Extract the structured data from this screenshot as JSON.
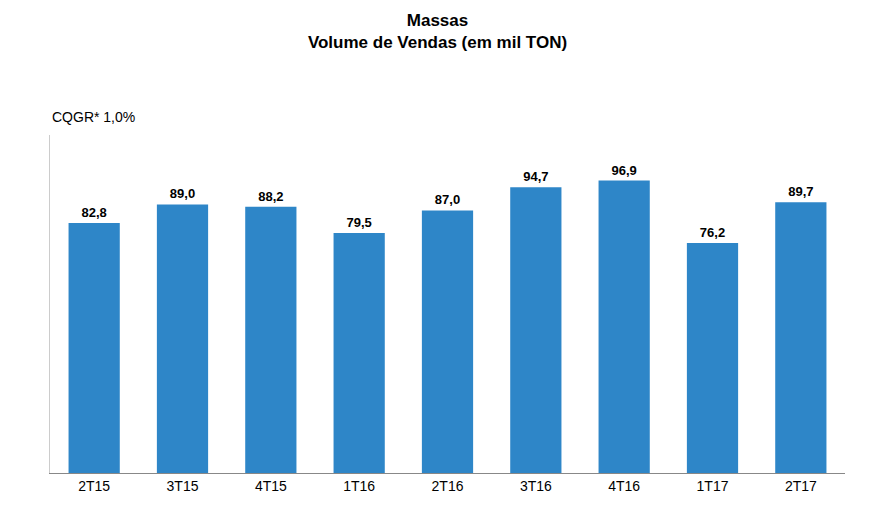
{
  "chart_data": {
    "type": "bar",
    "title": "Massas",
    "subtitle": "Volume de Vendas (em mil TON)",
    "annotations": [
      "CQGR* 1,0%"
    ],
    "categories": [
      "2T15",
      "3T15",
      "4T15",
      "1T16",
      "2T16",
      "3T16",
      "4T16",
      "1T17",
      "2T17"
    ],
    "values": [
      82.8,
      89.0,
      88.2,
      79.5,
      87.0,
      94.7,
      96.9,
      76.2,
      89.7
    ],
    "value_labels": [
      "82,8",
      "89,0",
      "88,2",
      "79,5",
      "87,0",
      "94,7",
      "96,9",
      "76,2",
      "89,7"
    ],
    "data_labels": true,
    "color": "#2E86C8",
    "ylim": [
      0,
      112
    ],
    "tick_labels": "x",
    "grid": false
  }
}
